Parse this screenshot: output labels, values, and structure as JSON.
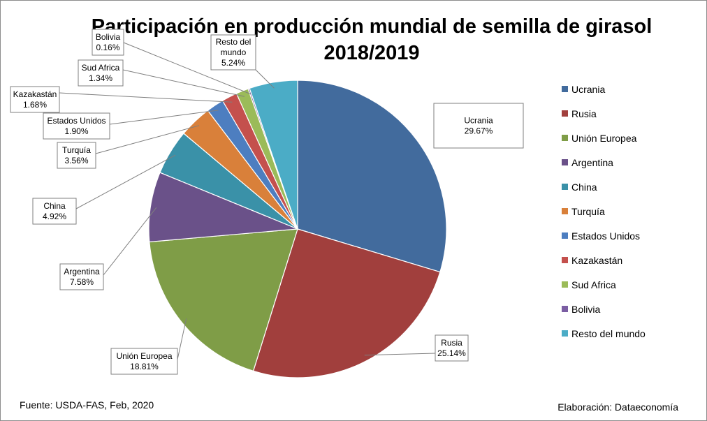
{
  "chart_data": {
    "type": "pie",
    "title": "Participación en producción mundial de semilla de girasol",
    "subtitle": "2018/2019",
    "unit": "%",
    "legend_position": "right",
    "slices": [
      {
        "label": "Ucrania",
        "value": 29.67,
        "display": "29.67%",
        "color": "#426b9d"
      },
      {
        "label": "Rusia",
        "value": 25.14,
        "display": "25.14%",
        "color": "#a13f3d"
      },
      {
        "label": "Unión Europea",
        "value": 18.81,
        "display": "18.81%",
        "color": "#7f9d47"
      },
      {
        "label": "Argentina",
        "value": 7.58,
        "display": "7.58%",
        "color": "#6a5189"
      },
      {
        "label": "China",
        "value": 4.92,
        "display": "4.92%",
        "color": "#3a91a8"
      },
      {
        "label": "Turquía",
        "value": 3.56,
        "display": "3.56%",
        "color": "#d9803a"
      },
      {
        "label": "Estados Unidos",
        "value": 1.9,
        "display": "1.90%",
        "color": "#4d7ec0"
      },
      {
        "label": "Kazakastán",
        "value": 1.68,
        "display": "1.68%",
        "color": "#c4504d"
      },
      {
        "label": "Sud Africa",
        "value": 1.34,
        "display": "1.34%",
        "color": "#9bbb59"
      },
      {
        "label": "Bolivia",
        "value": 0.16,
        "display": "0.16%",
        "color": "#7b5ea3"
      },
      {
        "label": "Resto del mundo",
        "value": 5.24,
        "display": "5.24%",
        "color": "#4bacc6"
      }
    ]
  },
  "footer": {
    "source": "Fuente: USDA-FAS, Feb, 2020",
    "credit": "Elaboración: Dataeconomía"
  }
}
